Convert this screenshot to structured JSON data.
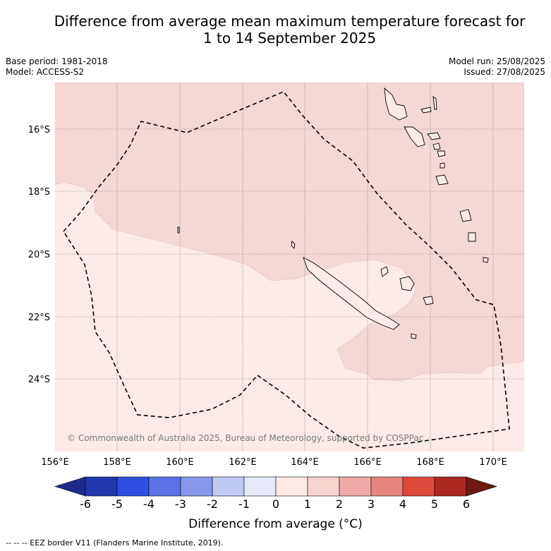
{
  "header": {
    "title_line1": "Difference from average mean maximum temperature forecast for",
    "title_line2": "1 to 14 September 2025"
  },
  "meta": {
    "base_period": "Base period: 1981-2018",
    "model": "Model: ACCESS-S2",
    "model_run": "Model run: 25/08/2025",
    "issued": "Issued: 27/08/2025"
  },
  "map": {
    "lat_ticks": [
      "16°S",
      "18°S",
      "20°S",
      "22°S",
      "24°S"
    ],
    "lon_ticks": [
      "156°E",
      "158°E",
      "160°E",
      "162°E",
      "164°E",
      "166°E",
      "168°E",
      "170°E"
    ],
    "copyright": "© Commonwealth of Australia 2025, Bureau of Meteorology, supported by COSPPac",
    "regions": [
      {
        "category": "1 to 2",
        "color": "#f5d7d5"
      },
      {
        "category": "0 to 1",
        "color": "#fbeae8"
      }
    ]
  },
  "colorbar": {
    "ticks": [
      "-6",
      "-5",
      "-4",
      "-3",
      "-2",
      "-1",
      "0",
      "1",
      "2",
      "3",
      "4",
      "5",
      "6"
    ],
    "colors": [
      "#1c2a8a",
      "#2239ad",
      "#2f4fe0",
      "#5a72e6",
      "#8798ec",
      "#c0c8f4",
      "#e6eafa",
      "#fceae6",
      "#f6d3cf",
      "#eeaaa5",
      "#e6857e",
      "#dd4a3c",
      "#ad2820",
      "#6e1810"
    ],
    "label": "Difference from average (°C)"
  },
  "footer": {
    "legend": "--  --  -- EEZ border V11 (Flanders Marine Institute, 2019)."
  }
}
